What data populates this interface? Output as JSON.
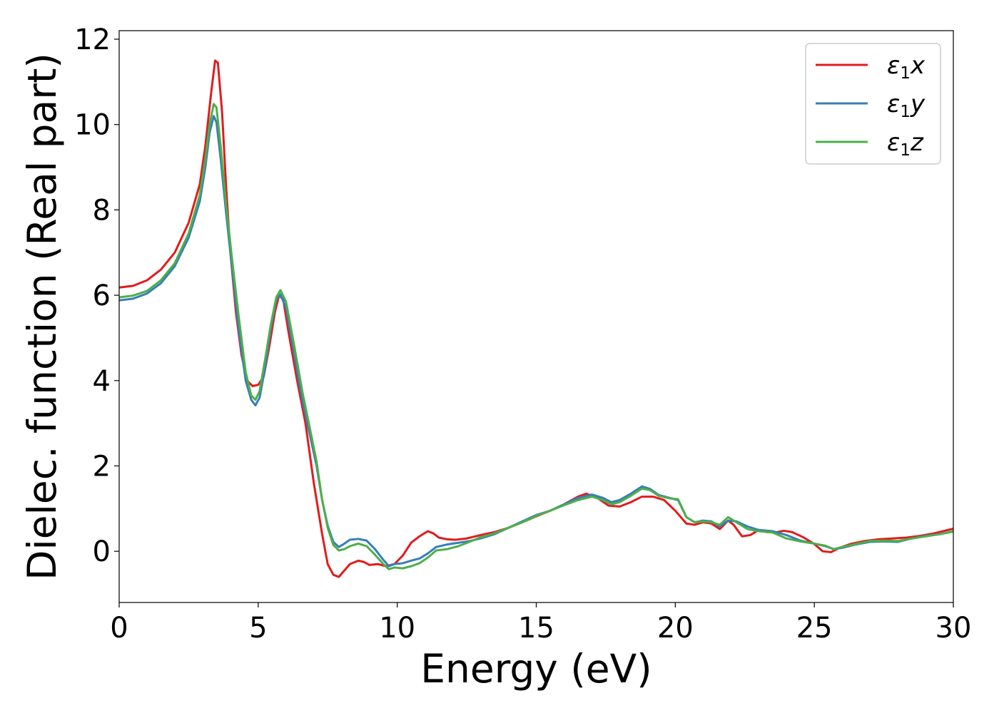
{
  "chart_data": {
    "type": "line",
    "xlabel": "Energy (eV)",
    "ylabel": "Dielec. function (Real part)",
    "xlim": [
      0,
      30
    ],
    "ylim": [
      -1.2,
      12.2
    ],
    "xticks": [
      0,
      5,
      10,
      15,
      20,
      25,
      30
    ],
    "yticks": [
      0,
      2,
      4,
      6,
      8,
      10,
      12
    ],
    "grid": false,
    "legend_position": "top-right",
    "series": [
      {
        "name": "ε1x",
        "legend": {
          "sym": "ε",
          "sub": "1",
          "var": "x"
        },
        "color": "#e41a1c",
        "points": [
          [
            0,
            6.18
          ],
          [
            0.5,
            6.22
          ],
          [
            1,
            6.35
          ],
          [
            1.5,
            6.6
          ],
          [
            2,
            7.0
          ],
          [
            2.5,
            7.7
          ],
          [
            2.9,
            8.6
          ],
          [
            3.1,
            9.5
          ],
          [
            3.3,
            10.7
          ],
          [
            3.45,
            11.5
          ],
          [
            3.55,
            11.45
          ],
          [
            3.7,
            10.3
          ],
          [
            3.85,
            8.5
          ],
          [
            4.0,
            7.0
          ],
          [
            4.2,
            5.6
          ],
          [
            4.4,
            4.6
          ],
          [
            4.6,
            4.0
          ],
          [
            4.8,
            3.87
          ],
          [
            5.0,
            3.9
          ],
          [
            5.2,
            4.1
          ],
          [
            5.4,
            4.8
          ],
          [
            5.6,
            5.6
          ],
          [
            5.75,
            6.0
          ],
          [
            5.9,
            5.9
          ],
          [
            6.1,
            5.1
          ],
          [
            6.4,
            4.0
          ],
          [
            6.7,
            3.0
          ],
          [
            7.0,
            1.6
          ],
          [
            7.3,
            0.4
          ],
          [
            7.5,
            -0.3
          ],
          [
            7.7,
            -0.55
          ],
          [
            7.9,
            -0.6
          ],
          [
            8.1,
            -0.45
          ],
          [
            8.3,
            -0.3
          ],
          [
            8.6,
            -0.22
          ],
          [
            8.8,
            -0.25
          ],
          [
            9.0,
            -0.32
          ],
          [
            9.3,
            -0.3
          ],
          [
            9.6,
            -0.35
          ],
          [
            9.9,
            -0.3
          ],
          [
            10.2,
            -0.1
          ],
          [
            10.5,
            0.2
          ],
          [
            10.8,
            0.35
          ],
          [
            11.1,
            0.47
          ],
          [
            11.3,
            0.42
          ],
          [
            11.5,
            0.32
          ],
          [
            11.8,
            0.28
          ],
          [
            12.1,
            0.27
          ],
          [
            12.5,
            0.3
          ],
          [
            13,
            0.38
          ],
          [
            13.5,
            0.45
          ],
          [
            14,
            0.55
          ],
          [
            14.5,
            0.68
          ],
          [
            15,
            0.82
          ],
          [
            15.5,
            0.95
          ],
          [
            16,
            1.1
          ],
          [
            16.5,
            1.28
          ],
          [
            16.8,
            1.35
          ],
          [
            17.2,
            1.25
          ],
          [
            17.6,
            1.07
          ],
          [
            18.0,
            1.05
          ],
          [
            18.4,
            1.15
          ],
          [
            18.8,
            1.28
          ],
          [
            19.2,
            1.28
          ],
          [
            19.6,
            1.2
          ],
          [
            20.0,
            0.95
          ],
          [
            20.4,
            0.65
          ],
          [
            20.7,
            0.62
          ],
          [
            21.0,
            0.68
          ],
          [
            21.3,
            0.65
          ],
          [
            21.6,
            0.52
          ],
          [
            21.9,
            0.72
          ],
          [
            22.1,
            0.62
          ],
          [
            22.4,
            0.35
          ],
          [
            22.7,
            0.38
          ],
          [
            23.0,
            0.5
          ],
          [
            23.3,
            0.45
          ],
          [
            23.6,
            0.44
          ],
          [
            23.9,
            0.48
          ],
          [
            24.2,
            0.45
          ],
          [
            24.6,
            0.33
          ],
          [
            25.0,
            0.17
          ],
          [
            25.3,
            0.0
          ],
          [
            25.6,
            -0.02
          ],
          [
            25.9,
            0.08
          ],
          [
            26.3,
            0.17
          ],
          [
            26.8,
            0.24
          ],
          [
            27.3,
            0.28
          ],
          [
            27.8,
            0.3
          ],
          [
            28.3,
            0.32
          ],
          [
            28.8,
            0.36
          ],
          [
            29.3,
            0.42
          ],
          [
            30,
            0.53
          ]
        ]
      },
      {
        "name": "ε1y",
        "legend": {
          "sym": "ε",
          "sub": "1",
          "var": "y"
        },
        "color": "#377eb8",
        "points": [
          [
            0,
            5.88
          ],
          [
            0.5,
            5.92
          ],
          [
            1,
            6.04
          ],
          [
            1.5,
            6.28
          ],
          [
            2,
            6.68
          ],
          [
            2.5,
            7.35
          ],
          [
            2.9,
            8.2
          ],
          [
            3.1,
            9.0
          ],
          [
            3.25,
            9.8
          ],
          [
            3.4,
            10.2
          ],
          [
            3.5,
            10.05
          ],
          [
            3.65,
            9.2
          ],
          [
            3.85,
            7.9
          ],
          [
            4.05,
            6.7
          ],
          [
            4.3,
            5.2
          ],
          [
            4.55,
            4.0
          ],
          [
            4.75,
            3.55
          ],
          [
            4.9,
            3.42
          ],
          [
            5.05,
            3.6
          ],
          [
            5.25,
            4.3
          ],
          [
            5.45,
            5.2
          ],
          [
            5.65,
            5.9
          ],
          [
            5.8,
            6.02
          ],
          [
            6.0,
            5.7
          ],
          [
            6.3,
            4.6
          ],
          [
            6.6,
            3.5
          ],
          [
            6.9,
            2.6
          ],
          [
            7.1,
            2.0
          ],
          [
            7.3,
            1.2
          ],
          [
            7.5,
            0.6
          ],
          [
            7.7,
            0.22
          ],
          [
            7.9,
            0.1
          ],
          [
            8.1,
            0.18
          ],
          [
            8.3,
            0.27
          ],
          [
            8.6,
            0.29
          ],
          [
            8.9,
            0.25
          ],
          [
            9.2,
            0.05
          ],
          [
            9.5,
            -0.2
          ],
          [
            9.7,
            -0.35
          ],
          [
            9.9,
            -0.3
          ],
          [
            10.2,
            -0.28
          ],
          [
            10.5,
            -0.22
          ],
          [
            10.8,
            -0.17
          ],
          [
            11.1,
            -0.05
          ],
          [
            11.4,
            0.1
          ],
          [
            11.8,
            0.16
          ],
          [
            12.2,
            0.2
          ],
          [
            12.6,
            0.24
          ],
          [
            13,
            0.3
          ],
          [
            13.5,
            0.4
          ],
          [
            14,
            0.55
          ],
          [
            14.5,
            0.7
          ],
          [
            15,
            0.85
          ],
          [
            15.5,
            0.95
          ],
          [
            16,
            1.1
          ],
          [
            16.5,
            1.25
          ],
          [
            17.0,
            1.33
          ],
          [
            17.4,
            1.25
          ],
          [
            17.7,
            1.15
          ],
          [
            18.0,
            1.2
          ],
          [
            18.4,
            1.35
          ],
          [
            18.8,
            1.52
          ],
          [
            19.1,
            1.46
          ],
          [
            19.4,
            1.32
          ],
          [
            19.8,
            1.25
          ],
          [
            20.1,
            1.2
          ],
          [
            20.4,
            0.8
          ],
          [
            20.7,
            0.68
          ],
          [
            21.0,
            0.72
          ],
          [
            21.3,
            0.7
          ],
          [
            21.6,
            0.58
          ],
          [
            21.9,
            0.72
          ],
          [
            22.2,
            0.7
          ],
          [
            22.6,
            0.58
          ],
          [
            23.0,
            0.5
          ],
          [
            23.5,
            0.47
          ],
          [
            24.0,
            0.38
          ],
          [
            24.5,
            0.25
          ],
          [
            25.0,
            0.18
          ],
          [
            25.4,
            0.12
          ],
          [
            25.7,
            0.05
          ],
          [
            26.0,
            0.08
          ],
          [
            26.5,
            0.16
          ],
          [
            27.0,
            0.22
          ],
          [
            27.5,
            0.23
          ],
          [
            28.0,
            0.22
          ],
          [
            28.5,
            0.3
          ],
          [
            29,
            0.36
          ],
          [
            29.5,
            0.4
          ],
          [
            30,
            0.47
          ]
        ]
      },
      {
        "name": "ε1z",
        "legend": {
          "sym": "ε",
          "sub": "1",
          "var": "z"
        },
        "color": "#4daf4a",
        "points": [
          [
            0,
            5.95
          ],
          [
            0.5,
            5.99
          ],
          [
            1,
            6.1
          ],
          [
            1.5,
            6.35
          ],
          [
            2,
            6.75
          ],
          [
            2.5,
            7.45
          ],
          [
            2.9,
            8.35
          ],
          [
            3.1,
            9.2
          ],
          [
            3.25,
            10.0
          ],
          [
            3.4,
            10.48
          ],
          [
            3.5,
            10.4
          ],
          [
            3.65,
            9.5
          ],
          [
            3.85,
            8.1
          ],
          [
            4.05,
            6.9
          ],
          [
            4.3,
            5.5
          ],
          [
            4.55,
            4.2
          ],
          [
            4.75,
            3.65
          ],
          [
            4.9,
            3.55
          ],
          [
            5.05,
            3.75
          ],
          [
            5.25,
            4.5
          ],
          [
            5.45,
            5.3
          ],
          [
            5.65,
            5.95
          ],
          [
            5.8,
            6.12
          ],
          [
            6.0,
            5.85
          ],
          [
            6.3,
            4.8
          ],
          [
            6.6,
            3.7
          ],
          [
            6.9,
            2.75
          ],
          [
            7.1,
            2.1
          ],
          [
            7.3,
            1.2
          ],
          [
            7.5,
            0.55
          ],
          [
            7.7,
            0.15
          ],
          [
            7.9,
            0.02
          ],
          [
            8.1,
            0.05
          ],
          [
            8.3,
            0.12
          ],
          [
            8.6,
            0.18
          ],
          [
            8.9,
            0.12
          ],
          [
            9.2,
            -0.08
          ],
          [
            9.5,
            -0.3
          ],
          [
            9.7,
            -0.42
          ],
          [
            9.9,
            -0.38
          ],
          [
            10.2,
            -0.4
          ],
          [
            10.5,
            -0.35
          ],
          [
            10.8,
            -0.28
          ],
          [
            11.1,
            -0.15
          ],
          [
            11.4,
            0.02
          ],
          [
            11.8,
            0.05
          ],
          [
            12.2,
            0.12
          ],
          [
            12.6,
            0.22
          ],
          [
            13,
            0.33
          ],
          [
            13.5,
            0.42
          ],
          [
            14,
            0.55
          ],
          [
            14.5,
            0.68
          ],
          [
            15,
            0.83
          ],
          [
            15.5,
            0.95
          ],
          [
            16,
            1.08
          ],
          [
            16.5,
            1.2
          ],
          [
            17.0,
            1.28
          ],
          [
            17.4,
            1.2
          ],
          [
            17.7,
            1.1
          ],
          [
            18.0,
            1.15
          ],
          [
            18.4,
            1.3
          ],
          [
            18.8,
            1.47
          ],
          [
            19.1,
            1.43
          ],
          [
            19.4,
            1.3
          ],
          [
            19.8,
            1.24
          ],
          [
            20.1,
            1.22
          ],
          [
            20.4,
            0.8
          ],
          [
            20.7,
            0.68
          ],
          [
            21.0,
            0.7
          ],
          [
            21.3,
            0.68
          ],
          [
            21.6,
            0.62
          ],
          [
            21.9,
            0.8
          ],
          [
            22.2,
            0.68
          ],
          [
            22.6,
            0.52
          ],
          [
            23.0,
            0.47
          ],
          [
            23.5,
            0.44
          ],
          [
            24.0,
            0.3
          ],
          [
            24.5,
            0.23
          ],
          [
            25.0,
            0.18
          ],
          [
            25.4,
            0.13
          ],
          [
            25.7,
            0.05
          ],
          [
            26.0,
            0.1
          ],
          [
            26.5,
            0.17
          ],
          [
            27.0,
            0.24
          ],
          [
            27.5,
            0.25
          ],
          [
            28.0,
            0.24
          ],
          [
            28.5,
            0.3
          ],
          [
            29,
            0.35
          ],
          [
            29.5,
            0.4
          ],
          [
            30,
            0.46
          ]
        ]
      }
    ]
  }
}
